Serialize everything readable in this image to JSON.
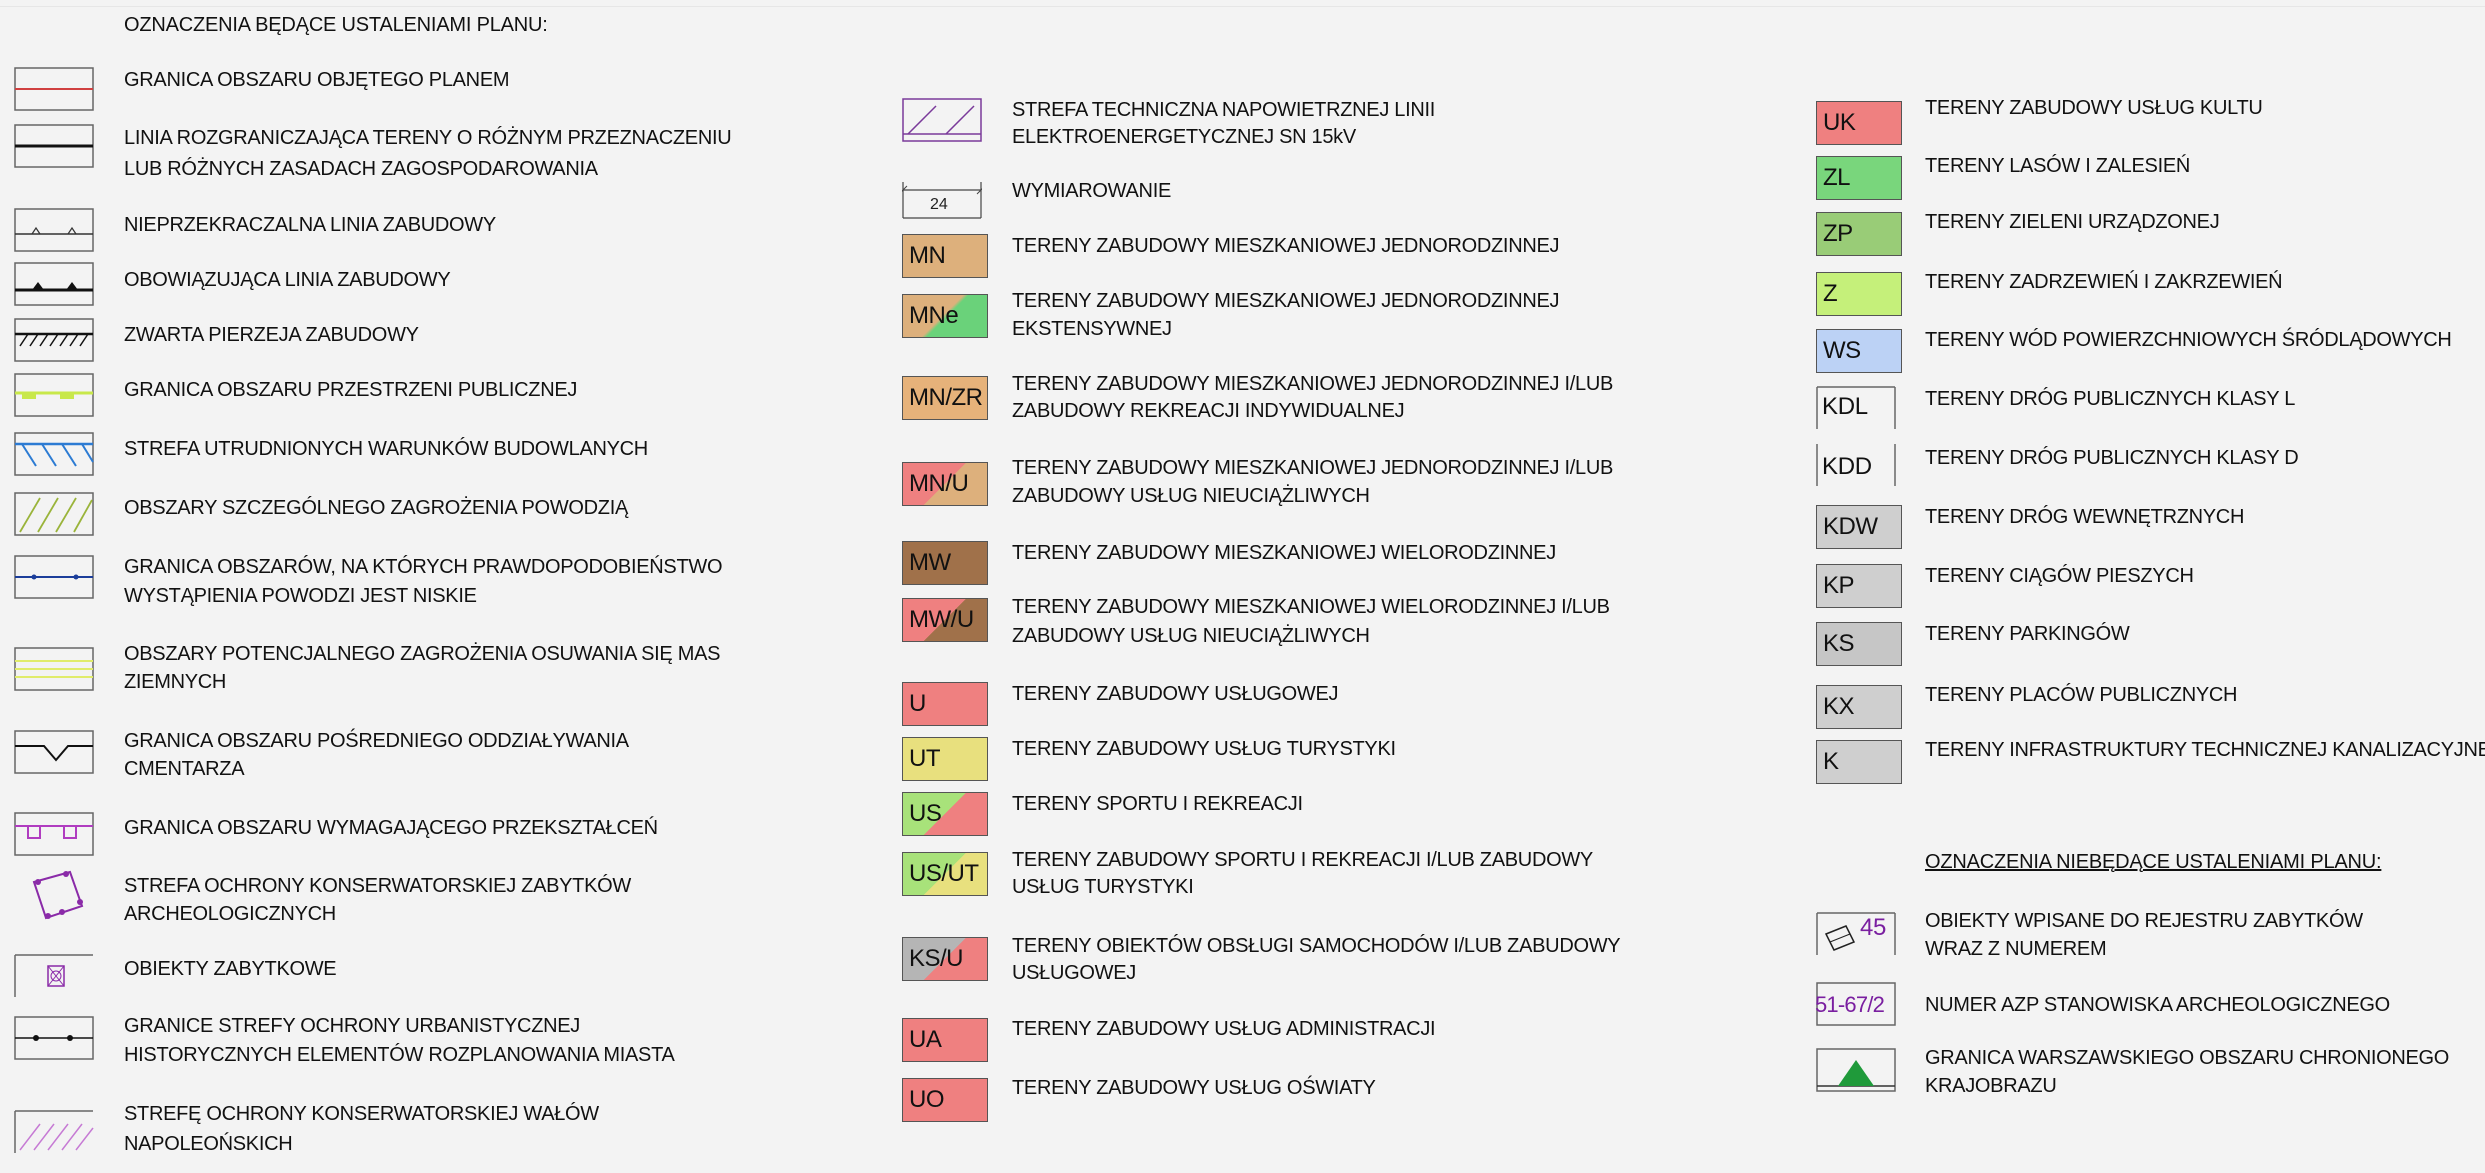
{
  "col1": {
    "header": "OZNACZENIA BĘDĄCE USTALENIAMI PLANU:",
    "items": [
      {
        "label": "GRANICA OBSZARU OBJĘTEGO PLANEM"
      },
      {
        "label": "LINIA ROZGRANICZAJĄCA TERENY O RÓŻNYM PRZEZNACZENIU",
        "label2": "LUB RÓŻNYCH ZASADACH ZAGOSPODAROWANIA"
      },
      {
        "label": "NIEPRZEKRACZALNA LINIA ZABUDOWY"
      },
      {
        "label": "OBOWIĄZUJĄCA LINIA ZABUDOWY"
      },
      {
        "label": "ZWARTA PIERZEJA ZABUDOWY"
      },
      {
        "label": "GRANICA OBSZARU PRZESTRZENI PUBLICZNEJ"
      },
      {
        "label": "STREFA UTRUDNIONYCH WARUNKÓW BUDOWLANYCH"
      },
      {
        "label": "OBSZARY SZCZEGÓLNEGO ZAGROŻENIA POWODZIĄ"
      },
      {
        "label": "GRANICA OBSZARÓW, NA KTÓRYCH PRAWDOPODOBIEŃSTWO",
        "label2": "WYSTĄPIENIA POWODZI JEST NISKIE"
      },
      {
        "label": "OBSZARY POTENCJALNEGO ZAGROŻENIA OSUWANIA SIĘ MAS",
        "label2": "ZIEMNYCH"
      },
      {
        "label": "GRANICA OBSZARU POŚREDNIEGO ODDZIAŁYWANIA",
        "label2": "CMENTARZA"
      },
      {
        "label": "GRANICA OBSZARU WYMAGAJĄCEGO PRZEKSZTAŁCEŃ"
      },
      {
        "label": "STREFA OCHRONY KONSERWATORSKIEJ ZABYTKÓW",
        "label2": "ARCHEOLOGICZNYCH"
      },
      {
        "label": "OBIEKTY ZABYTKOWE"
      },
      {
        "label": "GRANICE STREFY OCHRONY URBANISTYCZNEJ",
        "label2": "HISTORYCZNYCH ELEMENTÓW ROZPLANOWANIA MIASTA"
      },
      {
        "label": "STREFĘ OCHRONY KONSERWATORSKIEJ WAŁÓW",
        "label2": "NAPOLEOŃSKICH"
      }
    ]
  },
  "col2": {
    "items": [
      {
        "code": "",
        "label": "STREFA TECHNICZNA NAPOWIETRZNEJ LINII",
        "label2": "ELEKTROENERGETYCZNEJ SN 15kV"
      },
      {
        "code": "24",
        "label": "WYMIAROWANIE"
      },
      {
        "code": "MN",
        "label": "TERENY ZABUDOWY MIESZKANIOWEJ JEDNORODZINNEJ"
      },
      {
        "code": "MNe",
        "label": "TERENY ZABUDOWY MIESZKANIOWEJ JEDNORODZINNEJ",
        "label2": "EKSTENSYWNEJ"
      },
      {
        "code": "MN/ZR",
        "label": "TERENY ZABUDOWY MIESZKANIOWEJ JEDNORODZINNEJ I/LUB",
        "label2": "ZABUDOWY REKREACJI INDYWIDUALNEJ"
      },
      {
        "code": "MN/U",
        "label": "TERENY ZABUDOWY MIESZKANIOWEJ JEDNORODZINNEJ I/LUB",
        "label2": "ZABUDOWY USŁUG NIEUCIĄŻLIWYCH"
      },
      {
        "code": "MW",
        "label": "TERENY ZABUDOWY MIESZKANIOWEJ WIELORODZINNEJ"
      },
      {
        "code": "MW/U",
        "label": "TERENY ZABUDOWY MIESZKANIOWEJ WIELORODZINNEJ I/LUB",
        "label2": "ZABUDOWY USŁUG NIEUCIĄŻLIWYCH"
      },
      {
        "code": "U",
        "label": "TERENY ZABUDOWY USŁUGOWEJ"
      },
      {
        "code": "UT",
        "label": "TERENY ZABUDOWY USŁUG TURYSTYKI"
      },
      {
        "code": "US",
        "label": "TERENY SPORTU I REKREACJI"
      },
      {
        "code": "US/UT",
        "label": "TERENY ZABUDOWY SPORTU I REKREACJI I/LUB ZABUDOWY",
        "label2": "USŁUG TURYSTYKI"
      },
      {
        "code": "KS/U",
        "label": "TERENY OBIEKTÓW OBSŁUGI SAMOCHODÓW I/LUB ZABUDOWY",
        "label2": "USŁUGOWEJ"
      },
      {
        "code": "UA",
        "label": "TERENY ZABUDOWY USŁUG ADMINISTRACJI"
      },
      {
        "code": "UO",
        "label": "TERENY ZABUDOWY USŁUG OŚWIATY"
      }
    ]
  },
  "col3": {
    "items": [
      {
        "code": "UK",
        "label": "TERENY ZABUDOWY USŁUG KULTU"
      },
      {
        "code": "ZL",
        "label": "TERENY LASÓW I ZALESIEŃ"
      },
      {
        "code": "ZP",
        "label": "TERENY ZIELENI URZĄDZONEJ"
      },
      {
        "code": "Z",
        "label": "TERENY ZADRZEWIEŃ I ZAKRZEWIEŃ"
      },
      {
        "code": "WS",
        "label": "TERENY WÓD POWIERZCHNIOWYCH ŚRÓDLĄDOWYCH"
      },
      {
        "code": "KDL",
        "label": "TERENY DRÓG PUBLICZNYCH KLASY L"
      },
      {
        "code": "KDD",
        "label": "TERENY DRÓG PUBLICZNYCH KLASY D"
      },
      {
        "code": "KDW",
        "label": "TERENY DRÓG WEWNĘTRZNYCH"
      },
      {
        "code": "KP",
        "label": "TERENY CIĄGÓW PIESZYCH"
      },
      {
        "code": "KS",
        "label": "TERENY PARKINGÓW"
      },
      {
        "code": "KX",
        "label": "TERENY PLACÓW PUBLICZNYCH"
      },
      {
        "code": "K",
        "label": "TERENY INFRASTRUKTURY TECHNICZNEJ KANALIZACYJNEJ"
      }
    ],
    "header2": "OZNACZENIA NIEBĘDĄCE USTALENIAMI PLANU:",
    "items2": [
      {
        "code": "45",
        "label": "OBIEKTY WPISANE DO REJESTRU ZABYTKÓW",
        "label2": "WRAZ Z NUMEREM"
      },
      {
        "code": "51-67/2",
        "label": "NUMER AZP STANOWISKA ARCHEOLOGICZNEGO"
      },
      {
        "code": "",
        "label": "GRANICA WARSZAWSKIEGO OBSZARU CHRONIONEGO",
        "label2": "KRAJOBRAZU"
      }
    ]
  },
  "colors": {
    "MN": "#ddb07c",
    "MW": "#a0714a",
    "U": "#ef8080",
    "UT": "#e8e07e",
    "US_green": "#a8e27a",
    "UK": "#ef8080",
    "ZL": "#79d67c",
    "ZP": "#99cc77",
    "Z": "#c5f07a",
    "WS": "#bcd2f5",
    "KDW": "#cfcfcf",
    "KP": "#cfcfcf",
    "KS": "#c6c6c6",
    "KX": "#cfcfcf",
    "K": "#cfcfcf",
    "KS_grey": "#b5b5b5",
    "azp_purple": "#7a1fa0",
    "triangle_green": "#1f9a3a",
    "background": "#f3f3f3"
  }
}
